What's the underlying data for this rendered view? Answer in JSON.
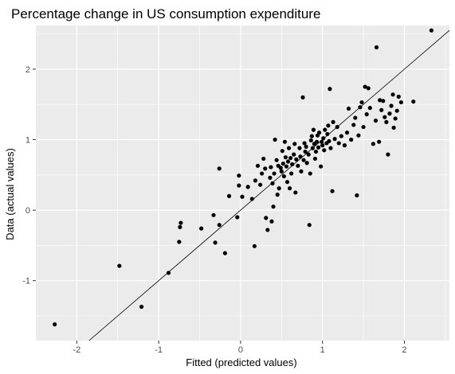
{
  "chart_data": {
    "type": "scatter",
    "title": "Percentage change in US consumption expenditure",
    "xlabel": "Fitted (predicted values)",
    "ylabel": "Data (actual values)",
    "xlim": [
      -2.5,
      2.55
    ],
    "ylim": [
      -1.85,
      2.62
    ],
    "x_ticks": [
      -2,
      -1,
      0,
      1,
      2
    ],
    "y_ticks": [
      -1,
      0,
      1,
      2
    ],
    "x_tick_labels": [
      "-2",
      "-1",
      "0",
      "1",
      "2"
    ],
    "y_tick_labels": [
      "-1",
      "0",
      "1",
      "2"
    ],
    "grid": true,
    "panel_background": "#ebebeb",
    "grid_color": "#ffffff",
    "point_color": "#000000",
    "reference_line": {
      "intercept": 0,
      "slope": 1,
      "color": "#000000"
    },
    "points": [
      [
        -2.27,
        -1.62
      ],
      [
        -1.48,
        -0.79
      ],
      [
        -1.21,
        -1.37
      ],
      [
        -0.88,
        -0.89
      ],
      [
        -0.73,
        -0.18
      ],
      [
        -0.74,
        -0.24
      ],
      [
        -0.75,
        -0.45
      ],
      [
        -0.48,
        -0.26
      ],
      [
        -0.33,
        -0.07
      ],
      [
        -0.31,
        -0.46
      ],
      [
        -0.26,
        -0.21
      ],
      [
        -0.19,
        -0.61
      ],
      [
        -0.26,
        0.59
      ],
      [
        -0.14,
        0.2
      ],
      [
        -0.04,
        -0.1
      ],
      [
        -0.02,
        0.49
      ],
      [
        -0.02,
        0.35
      ],
      [
        0.02,
        0.19
      ],
      [
        0.09,
        0.33
      ],
      [
        0.14,
        0.16
      ],
      [
        0.17,
        -0.51
      ],
      [
        0.18,
        0.42
      ],
      [
        0.21,
        0.63
      ],
      [
        0.24,
        0.36
      ],
      [
        0.26,
        0.52
      ],
      [
        0.28,
        0.73
      ],
      [
        0.3,
        0.59
      ],
      [
        0.31,
        -0.11
      ],
      [
        0.33,
        -0.28
      ],
      [
        0.36,
        0.46
      ],
      [
        0.37,
        0.61
      ],
      [
        0.38,
        -0.16
      ],
      [
        0.39,
        0.38
      ],
      [
        0.4,
        0.05
      ],
      [
        0.41,
        0.52
      ],
      [
        0.42,
        1.0
      ],
      [
        0.44,
        0.71
      ],
      [
        0.45,
        0.22
      ],
      [
        0.46,
        0.63
      ],
      [
        0.47,
        0.31
      ],
      [
        0.49,
        0.6
      ],
      [
        0.5,
        0.55
      ],
      [
        0.51,
        0.84
      ],
      [
        0.52,
        0.66
      ],
      [
        0.53,
        0.48
      ],
      [
        0.54,
        0.97
      ],
      [
        0.55,
        0.75
      ],
      [
        0.56,
        0.62
      ],
      [
        0.57,
        0.4
      ],
      [
        0.58,
        0.69
      ],
      [
        0.59,
        0.88
      ],
      [
        0.6,
        0.31
      ],
      [
        0.61,
        0.74
      ],
      [
        0.62,
        0.52
      ],
      [
        0.63,
        0.65
      ],
      [
        0.65,
        0.79
      ],
      [
        0.66,
        0.94
      ],
      [
        0.67,
        0.25
      ],
      [
        0.68,
        0.72
      ],
      [
        0.7,
        0.63
      ],
      [
        0.72,
        0.88
      ],
      [
        0.73,
        0.76
      ],
      [
        0.74,
        0.55
      ],
      [
        0.76,
        1.6
      ],
      [
        0.77,
        0.71
      ],
      [
        0.78,
        0.95
      ],
      [
        0.79,
        0.83
      ],
      [
        0.8,
        0.9
      ],
      [
        0.81,
        0.67
      ],
      [
        0.83,
        0.79
      ],
      [
        0.84,
        -0.21
      ],
      [
        0.85,
        0.52
      ],
      [
        0.86,
        0.99
      ],
      [
        0.87,
        1.05
      ],
      [
        0.88,
        0.88
      ],
      [
        0.89,
        1.14
      ],
      [
        0.9,
        0.94
      ],
      [
        0.91,
        0.73
      ],
      [
        0.92,
        0.83
      ],
      [
        0.93,
        0.97
      ],
      [
        0.94,
        1.06
      ],
      [
        0.95,
        0.89
      ],
      [
        0.96,
        1.1
      ],
      [
        0.98,
        0.62
      ],
      [
        0.99,
        0.97
      ],
      [
        1.0,
        0.92
      ],
      [
        1.01,
        1.02
      ],
      [
        1.02,
        0.85
      ],
      [
        1.03,
        1.14
      ],
      [
        1.05,
        0.95
      ],
      [
        1.06,
        1.08
      ],
      [
        1.07,
        1.2
      ],
      [
        1.08,
        0.98
      ],
      [
        1.09,
        1.72
      ],
      [
        1.1,
        0.88
      ],
      [
        1.12,
        0.27
      ],
      [
        1.13,
        1.25
      ],
      [
        1.15,
        1.01
      ],
      [
        1.18,
        1.18
      ],
      [
        1.2,
        0.95
      ],
      [
        1.23,
        1.05
      ],
      [
        1.27,
        0.92
      ],
      [
        1.3,
        1.1
      ],
      [
        1.32,
        1.44
      ],
      [
        1.35,
        1.0
      ],
      [
        1.38,
        1.21
      ],
      [
        1.4,
        1.31
      ],
      [
        1.42,
        0.21
      ],
      [
        1.44,
        1.06
      ],
      [
        1.46,
        1.46
      ],
      [
        1.48,
        1.53
      ],
      [
        1.5,
        1.18
      ],
      [
        1.52,
        1.75
      ],
      [
        1.54,
        1.36
      ],
      [
        1.56,
        1.73
      ],
      [
        1.58,
        1.45
      ],
      [
        1.62,
        0.94
      ],
      [
        1.65,
        1.27
      ],
      [
        1.66,
        2.31
      ],
      [
        1.69,
        0.97
      ],
      [
        1.7,
        1.56
      ],
      [
        1.72,
        1.42
      ],
      [
        1.74,
        1.55
      ],
      [
        1.76,
        1.32
      ],
      [
        1.78,
        1.25
      ],
      [
        1.8,
        0.79
      ],
      [
        1.82,
        1.37
      ],
      [
        1.84,
        1.48
      ],
      [
        1.86,
        1.64
      ],
      [
        1.87,
        1.17
      ],
      [
        1.89,
        1.3
      ],
      [
        1.91,
        1.41
      ],
      [
        1.93,
        1.61
      ],
      [
        1.96,
        1.53
      ],
      [
        2.11,
        1.54
      ],
      [
        2.33,
        2.55
      ]
    ]
  }
}
